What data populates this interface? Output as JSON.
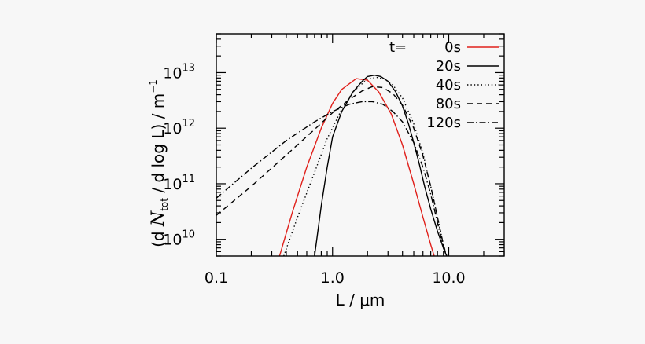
{
  "chart_data": {
    "type": "line",
    "title": "",
    "xlabel": "L / μm",
    "ylabel": {
      "prefix": "(d ",
      "symbol": "N",
      "subscript": "tot",
      "middle": " / d log L) / m",
      "superscript": "−1"
    },
    "xscale": "log",
    "yscale": "log",
    "xlim": [
      0.1,
      30
    ],
    "ylim": [
      5000000000,
      50000000000000
    ],
    "xticks": [
      {
        "value": 0.1,
        "label": "0.1"
      },
      {
        "value": 1,
        "label": "1.0"
      },
      {
        "value": 10,
        "label": "10.0"
      }
    ],
    "yticks": [
      {
        "value": 10000000000,
        "base": "10",
        "exp": "10"
      },
      {
        "value": 100000000000,
        "base": "10",
        "exp": "11"
      },
      {
        "value": 1000000000000,
        "base": "10",
        "exp": "12"
      },
      {
        "value": 10000000000000,
        "base": "10",
        "exp": "13"
      }
    ],
    "grid": false,
    "legend": {
      "title": "t=",
      "placement": "top-right"
    },
    "series": [
      {
        "name": "0s",
        "color": "#e0201b",
        "dash": "solid",
        "x": [
          0.35,
          0.45,
          0.6,
          0.8,
          1.0,
          1.2,
          1.6,
          2.0,
          2.5,
          3.2,
          4.0,
          5.0,
          6.0,
          7.0,
          7.5
        ],
        "y": [
          5000000000,
          30000000000,
          200000000000,
          1000000000000,
          2800000000000,
          5000000000000,
          7800000000000,
          7300000000000,
          4500000000000,
          1800000000000,
          500000000000,
          100000000000,
          25000000000,
          8000000000,
          5000000000
        ]
      },
      {
        "name": "20s",
        "color": "#000000",
        "dash": "solid",
        "x": [
          0.7,
          0.8,
          0.9,
          1.0,
          1.2,
          1.5,
          1.8,
          2.0,
          2.3,
          2.6,
          3.0,
          3.5,
          4.0,
          4.5,
          5.0,
          5.6,
          6.2,
          7.0,
          8.0,
          9.0,
          9.6
        ],
        "y": [
          5000000000,
          40000000000,
          200000000000,
          700000000000,
          2000000000000,
          4500000000000,
          7000000000000,
          8500000000000,
          9000000000000,
          8500000000000,
          7000000000000,
          4500000000000,
          2500000000000,
          1200000000000,
          550000000000,
          220000000000,
          90000000000,
          35000000000,
          14000000000,
          7000000000,
          5000000000
        ]
      },
      {
        "name": "40s",
        "color": "#000000",
        "dash": "dotted",
        "x": [
          0.38,
          0.5,
          0.7,
          0.9,
          1.2,
          1.5,
          2.0,
          2.4,
          2.8,
          3.3,
          4.0,
          5.0,
          6.0,
          7.0,
          8.0,
          9.0,
          9.6
        ],
        "y": [
          5000000000,
          25000000000,
          160000000000,
          650000000000,
          2200000000000,
          4500000000000,
          7700000000000,
          8200000000000,
          7700000000000,
          6000000000000,
          3500000000000,
          1200000000000,
          350000000000,
          90000000000,
          25000000000,
          8000000000,
          5000000000
        ]
      },
      {
        "name": "80s",
        "color": "#000000",
        "dash": "dashed",
        "x": [
          0.1,
          0.2,
          0.4,
          0.7,
          1.0,
          1.4,
          1.8,
          2.2,
          2.7,
          3.3,
          4.0,
          5.0,
          6.0,
          7.0,
          8.0,
          9.0,
          9.6
        ],
        "y": [
          27000000000,
          90000000000,
          330000000000,
          950000000000,
          1900000000000,
          3300000000000,
          4700000000000,
          5600000000000,
          5400000000000,
          4200000000000,
          2600000000000,
          1000000000000,
          320000000000,
          90000000000,
          25000000000,
          8000000000,
          5000000000
        ]
      },
      {
        "name": "120s",
        "color": "#000000",
        "dash": "dashdot",
        "x": [
          0.1,
          0.2,
          0.4,
          0.7,
          1.0,
          1.4,
          1.8,
          2.2,
          2.7,
          3.3,
          4.0,
          5.0,
          6.0,
          7.0,
          8.0,
          9.0,
          9.6
        ],
        "y": [
          55000000000,
          190000000000,
          600000000000,
          1300000000000,
          2000000000000,
          2700000000000,
          3000000000000,
          3000000000000,
          2700000000000,
          2000000000000,
          1300000000000,
          550000000000,
          200000000000,
          65000000000,
          20000000000,
          7000000000,
          5000000000
        ]
      }
    ]
  }
}
